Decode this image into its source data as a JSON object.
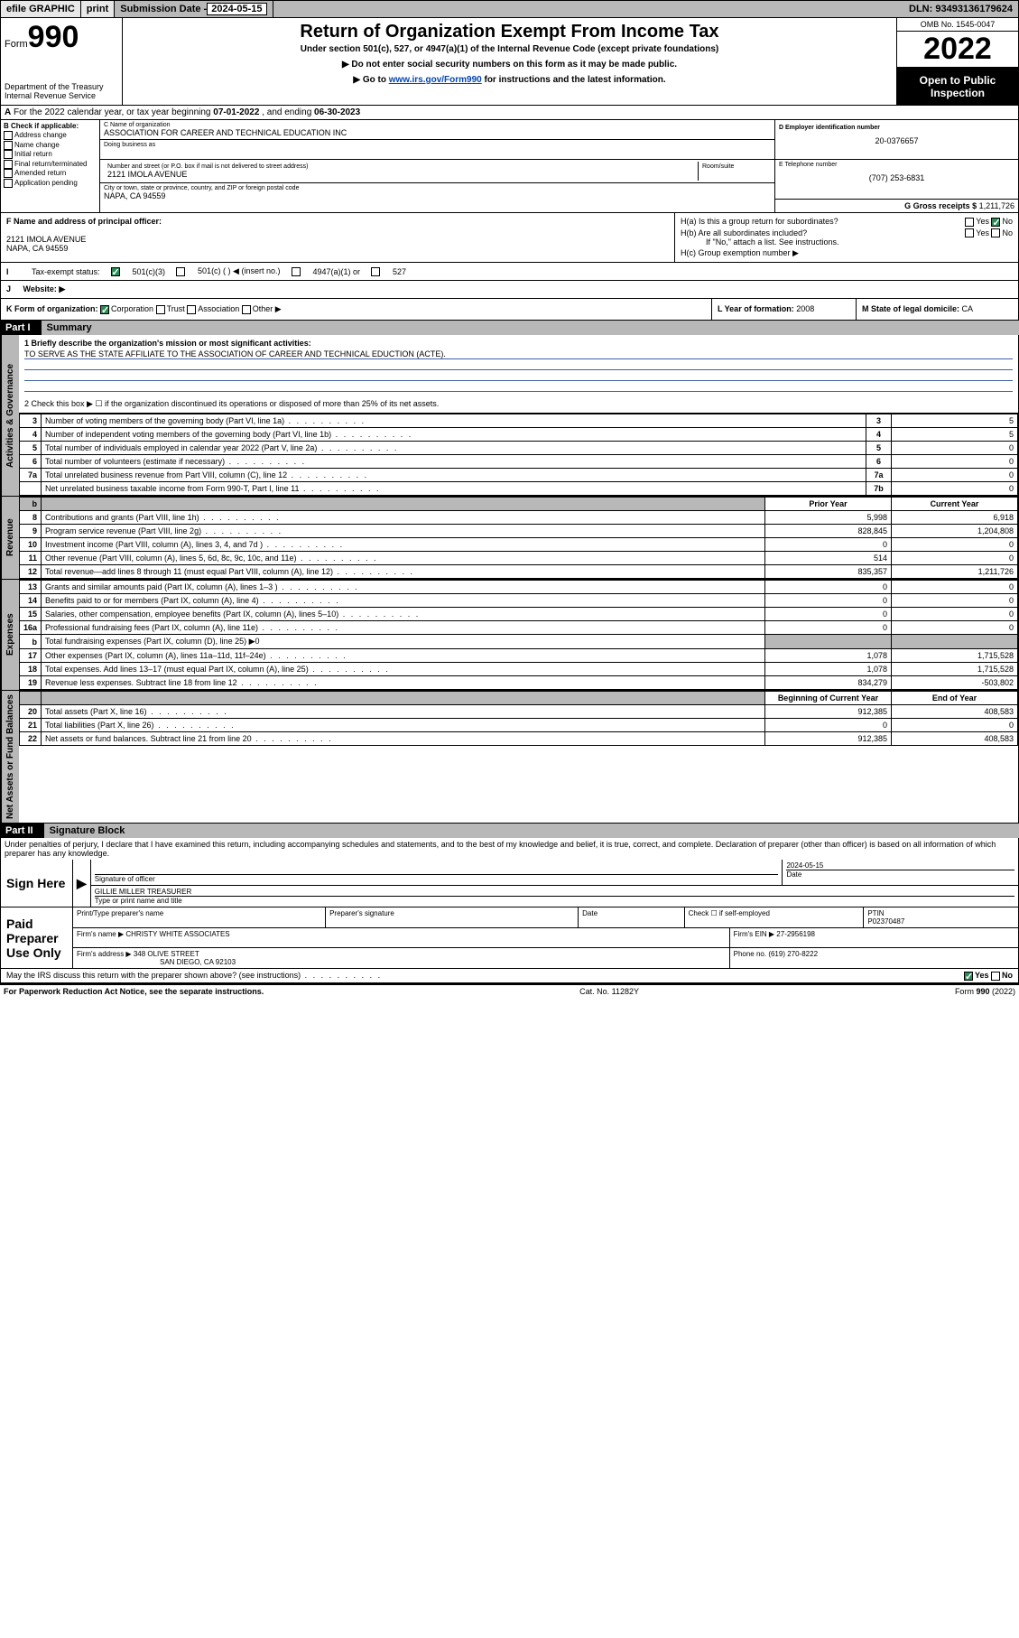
{
  "topbar": {
    "efile": "efile GRAPHIC",
    "print": "print",
    "sub_label": "Submission Date - ",
    "sub_date": "2024-05-15",
    "dln": "DLN: 93493136179624"
  },
  "header": {
    "form_word": "Form",
    "form_num": "990",
    "dept": "Department of the Treasury",
    "irs": "Internal Revenue Service",
    "title": "Return of Organization Exempt From Income Tax",
    "line1": "Under section 501(c), 527, or 4947(a)(1) of the Internal Revenue Code (except private foundations)",
    "line2": "▶ Do not enter social security numbers on this form as it may be made public.",
    "line3_pre": "▶ Go to ",
    "line3_link": "www.irs.gov/Form990",
    "line3_post": " for instructions and the latest information.",
    "omb": "OMB No. 1545-0047",
    "year": "2022",
    "inspection": "Open to Public Inspection"
  },
  "period": {
    "label": "For the 2022 calendar year, or tax year beginning ",
    "begin": "07-01-2022",
    "mid": " , and ending ",
    "end": "06-30-2023",
    "prefix": "A"
  },
  "boxB": {
    "header": "B Check if applicable:",
    "items": [
      "Address change",
      "Name change",
      "Initial return",
      "Final return/terminated",
      "Amended return",
      "Application pending"
    ]
  },
  "org": {
    "c_label": "C Name of organization",
    "name": "ASSOCIATION FOR CAREER AND TECHNICAL EDUCATION INC",
    "dba_label": "Doing business as",
    "addr_label": "Number and street (or P.O. box if mail is not delivered to street address)",
    "room_label": "Room/suite",
    "addr": "2121 IMOLA AVENUE",
    "city_label": "City or town, state or province, country, and ZIP or foreign postal code",
    "city": "NAPA, CA  94559"
  },
  "right": {
    "d_label": "D Employer identification number",
    "ein": "20-0376657",
    "e_label": "E Telephone number",
    "phone": "(707) 253-6831",
    "g_label": "G Gross receipts $ ",
    "g_val": "1,211,726"
  },
  "officer": {
    "f_label": "F Name and address of principal officer:",
    "addr1": "2121 IMOLA AVENUE",
    "addr2": "NAPA, CA  94559"
  },
  "h": {
    "a_label": "H(a)  Is this a group return for subordinates?",
    "b_label": "H(b)  Are all subordinates included?",
    "b_note": "If \"No,\" attach a list. See instructions.",
    "c_label": "H(c)  Group exemption number ▶",
    "yes": "Yes",
    "no": "No"
  },
  "status": {
    "i_label": "Tax-exempt status:",
    "opt1": "501(c)(3)",
    "opt2": "501(c) (  ) ◀ (insert no.)",
    "opt3": "4947(a)(1) or",
    "opt4": "527",
    "j_label": "Website: ▶"
  },
  "k": {
    "label": "K Form of organization:",
    "opts": [
      "Corporation",
      "Trust",
      "Association",
      "Other ▶"
    ],
    "l_label": "L Year of formation: ",
    "l_val": "2008",
    "m_label": "M State of legal domicile: ",
    "m_val": "CA"
  },
  "part1": {
    "label": "Part I",
    "title": "Summary",
    "q1": "1  Briefly describe the organization's mission or most significant activities:",
    "q1_ans": "TO SERVE AS THE STATE AFFILIATE TO THE ASSOCIATION OF CAREER AND TECHNICAL EDUCTION (ACTE).",
    "q2": "2   Check this box ▶ ☐  if the organization discontinued its operations or disposed of more than 25% of its net assets."
  },
  "gov_rows": [
    {
      "n": "3",
      "t": "Number of voting members of the governing body (Part VI, line 1a)",
      "box": "3",
      "v": "5"
    },
    {
      "n": "4",
      "t": "Number of independent voting members of the governing body (Part VI, line 1b)",
      "box": "4",
      "v": "5"
    },
    {
      "n": "5",
      "t": "Total number of individuals employed in calendar year 2022 (Part V, line 2a)",
      "box": "5",
      "v": "0"
    },
    {
      "n": "6",
      "t": "Total number of volunteers (estimate if necessary)",
      "box": "6",
      "v": "0"
    },
    {
      "n": "7a",
      "t": "Total unrelated business revenue from Part VIII, column (C), line 12",
      "box": "7a",
      "v": "0"
    },
    {
      "n": "",
      "t": "Net unrelated business taxable income from Form 990-T, Part I, line 11",
      "box": "7b",
      "v": "0"
    }
  ],
  "col_headers": {
    "b": "b",
    "prior": "Prior Year",
    "current": "Current Year"
  },
  "revenue_rows": [
    {
      "n": "8",
      "t": "Contributions and grants (Part VIII, line 1h)",
      "p": "5,998",
      "c": "6,918"
    },
    {
      "n": "9",
      "t": "Program service revenue (Part VIII, line 2g)",
      "p": "828,845",
      "c": "1,204,808"
    },
    {
      "n": "10",
      "t": "Investment income (Part VIII, column (A), lines 3, 4, and 7d )",
      "p": "0",
      "c": "0"
    },
    {
      "n": "11",
      "t": "Other revenue (Part VIII, column (A), lines 5, 6d, 8c, 9c, 10c, and 11e)",
      "p": "514",
      "c": "0"
    },
    {
      "n": "12",
      "t": "Total revenue—add lines 8 through 11 (must equal Part VIII, column (A), line 12)",
      "p": "835,357",
      "c": "1,211,726"
    }
  ],
  "expense_rows": [
    {
      "n": "13",
      "t": "Grants and similar amounts paid (Part IX, column (A), lines 1–3 )",
      "p": "0",
      "c": "0"
    },
    {
      "n": "14",
      "t": "Benefits paid to or for members (Part IX, column (A), line 4)",
      "p": "0",
      "c": "0"
    },
    {
      "n": "15",
      "t": "Salaries, other compensation, employee benefits (Part IX, column (A), lines 5–10)",
      "p": "0",
      "c": "0"
    },
    {
      "n": "16a",
      "t": "Professional fundraising fees (Part IX, column (A), line 11e)",
      "p": "0",
      "c": "0"
    },
    {
      "n": "b",
      "t": "Total fundraising expenses (Part IX, column (D), line 25) ▶0",
      "p": "",
      "c": "",
      "shade": true
    },
    {
      "n": "17",
      "t": "Other expenses (Part IX, column (A), lines 11a–11d, 11f–24e)",
      "p": "1,078",
      "c": "1,715,528"
    },
    {
      "n": "18",
      "t": "Total expenses. Add lines 13–17 (must equal Part IX, column (A), line 25)",
      "p": "1,078",
      "c": "1,715,528"
    },
    {
      "n": "19",
      "t": "Revenue less expenses. Subtract line 18 from line 12",
      "p": "834,279",
      "c": "-503,802"
    }
  ],
  "net_headers": {
    "begin": "Beginning of Current Year",
    "end": "End of Year"
  },
  "net_rows": [
    {
      "n": "20",
      "t": "Total assets (Part X, line 16)",
      "p": "912,385",
      "c": "408,583"
    },
    {
      "n": "21",
      "t": "Total liabilities (Part X, line 26)",
      "p": "0",
      "c": "0"
    },
    {
      "n": "22",
      "t": "Net assets or fund balances. Subtract line 21 from line 20",
      "p": "912,385",
      "c": "408,583"
    }
  ],
  "vtabs": {
    "gov": "Activities & Governance",
    "rev": "Revenue",
    "exp": "Expenses",
    "net": "Net Assets or Fund Balances"
  },
  "part2": {
    "label": "Part II",
    "title": "Signature Block",
    "decl": "Under penalties of perjury, I declare that I have examined this return, including accompanying schedules and statements, and to the best of my knowledge and belief, it is true, correct, and complete. Declaration of preparer (other than officer) is based on all information of which preparer has any knowledge."
  },
  "sign": {
    "here": "Sign Here",
    "sig_label": "Signature of officer",
    "date_label": "Date",
    "date": "2024-05-15",
    "name": "GILLIE MILLER  TREASURER",
    "name_label": "Type or print name and title"
  },
  "preparer": {
    "label": "Paid Preparer Use Only",
    "print_label": "Print/Type preparer's name",
    "sig_label": "Preparer's signature",
    "date_label": "Date",
    "check_label": "Check ☐ if self-employed",
    "ptin_label": "PTIN",
    "ptin": "P02370487",
    "firm_name_label": "Firm's name    ▶ ",
    "firm_name": "CHRISTY WHITE ASSOCIATES",
    "firm_ein_label": "Firm's EIN ▶ ",
    "firm_ein": "27-2956198",
    "firm_addr_label": "Firm's address ▶ ",
    "firm_addr1": "348 OLIVE STREET",
    "firm_addr2": "SAN DIEGO, CA  92103",
    "phone_label": "Phone no. ",
    "phone": "(619) 270-8222"
  },
  "discuss": {
    "q": "May the IRS discuss this return with the preparer shown above? (see instructions)",
    "yes": "Yes",
    "no": "No"
  },
  "footer": {
    "left": "For Paperwork Reduction Act Notice, see the separate instructions.",
    "mid": "Cat. No. 11282Y",
    "right": "Form 990 (2022)"
  }
}
